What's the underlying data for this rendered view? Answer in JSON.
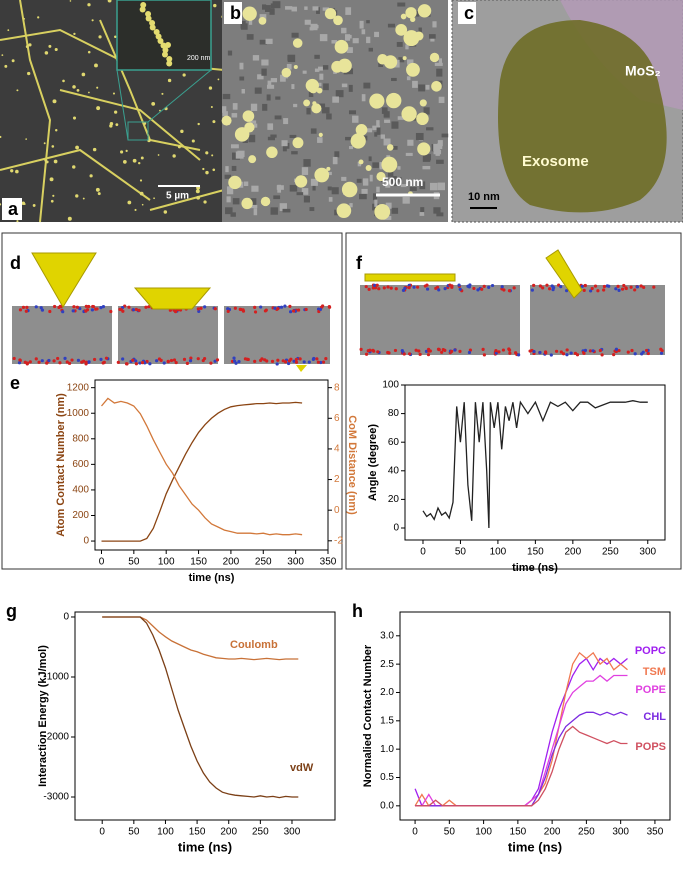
{
  "panels": {
    "a": {
      "label": "a",
      "scale_bar": "5 µm",
      "inset_scale_bar": "200 nm"
    },
    "b": {
      "label": "b",
      "scale_bar": "500 nm"
    },
    "c": {
      "label": "c",
      "scale_bar": "10 nm",
      "mos2": "MoS₂",
      "exosome": "Exosome"
    },
    "d": {
      "label": "d"
    },
    "e": {
      "label": "e"
    },
    "f": {
      "label": "f"
    },
    "g": {
      "label": "g"
    },
    "h": {
      "label": "h"
    }
  },
  "chart_data": [
    {
      "type": "line",
      "xlabel": "time (ns)",
      "ylabel": "Atom Contact Number (nm)",
      "y2label": "CoM Distance (nm)",
      "x": [
        0,
        10,
        20,
        30,
        40,
        50,
        60,
        70,
        80,
        90,
        100,
        110,
        120,
        130,
        140,
        150,
        160,
        170,
        180,
        190,
        200,
        210,
        220,
        230,
        240,
        250,
        260,
        270,
        280,
        290,
        300,
        310
      ],
      "series": [
        {
          "color": "#8b4513",
          "values": [
            0,
            0,
            0,
            0,
            0,
            0,
            0,
            20,
            100,
            230,
            370,
            480,
            580,
            680,
            770,
            850,
            910,
            960,
            1000,
            1030,
            1050,
            1060,
            1065,
            1070,
            1075,
            1075,
            1080,
            1075,
            1080,
            1080,
            1085,
            1080
          ]
        },
        {
          "color": "#d2783a",
          "axis": "y2",
          "values": [
            6.8,
            7.3,
            7.0,
            7.1,
            7.0,
            6.8,
            6.3,
            5.5,
            4.6,
            3.8,
            3.0,
            2.4,
            1.6,
            1.0,
            0.4,
            0.0,
            -0.5,
            -0.9,
            -1.1,
            -1.3,
            -1.4,
            -1.5,
            -1.5,
            -1.5,
            -1.55,
            -1.5,
            -1.6,
            -1.55,
            -1.6,
            -1.6,
            -1.55,
            -1.6
          ]
        }
      ],
      "xlim": [
        -10,
        350
      ],
      "xticks": [
        0,
        50,
        100,
        150,
        200,
        250,
        300,
        350
      ],
      "ylim": [
        -70,
        1260
      ],
      "yticks": [
        0,
        200,
        400,
        600,
        800,
        1000,
        1200
      ],
      "y2lim": [
        -2.6,
        8.5
      ],
      "y2ticks": [
        -2,
        0,
        2,
        4,
        6,
        8
      ]
    },
    {
      "type": "line",
      "xlabel": "time (ns)",
      "ylabel": "Angle (degree)",
      "x": [
        0,
        5,
        10,
        15,
        20,
        25,
        30,
        35,
        40,
        45,
        50,
        55,
        60,
        65,
        70,
        75,
        80,
        85,
        88,
        90,
        95,
        100,
        105,
        110,
        115,
        120,
        125,
        130,
        140,
        150,
        160,
        170,
        180,
        190,
        200,
        210,
        220,
        230,
        240,
        250,
        260,
        270,
        280,
        290,
        300
      ],
      "series": [
        {
          "color": "#222222",
          "values": [
            12,
            8,
            10,
            6,
            14,
            9,
            11,
            7,
            18,
            85,
            60,
            88,
            30,
            5,
            88,
            60,
            88,
            40,
            0,
            88,
            70,
            88,
            55,
            85,
            75,
            88,
            70,
            88,
            80,
            88,
            75,
            88,
            85,
            88,
            82,
            88,
            88,
            84,
            86,
            88,
            88,
            88,
            89,
            88,
            88
          ]
        }
      ],
      "xlim": [
        -24,
        323
      ],
      "xticks": [
        0,
        50,
        100,
        150,
        200,
        250,
        300
      ],
      "ylim": [
        -8.4,
        100
      ],
      "yticks": [
        0,
        20,
        40,
        60,
        80,
        100
      ]
    },
    {
      "type": "line",
      "xlabel": "time (ns)",
      "ylabel": "Interaction Energy (kJ/mol)",
      "x": [
        0,
        10,
        20,
        30,
        40,
        50,
        60,
        70,
        80,
        90,
        100,
        110,
        120,
        130,
        140,
        150,
        160,
        170,
        180,
        190,
        200,
        210,
        220,
        230,
        240,
        250,
        260,
        270,
        280,
        290,
        300,
        310
      ],
      "series": [
        {
          "name": "Coulomb",
          "color": "#c87137",
          "values": [
            0,
            0,
            0,
            0,
            0,
            0,
            0,
            -50,
            -150,
            -250,
            -330,
            -400,
            -450,
            -500,
            -550,
            -580,
            -620,
            -650,
            -680,
            -690,
            -700,
            -700,
            -690,
            -700,
            -710,
            -700,
            -690,
            -700,
            -710,
            -700,
            -700,
            -700
          ]
        },
        {
          "name": "vdW",
          "color": "#7b3f16",
          "values": [
            0,
            0,
            0,
            0,
            0,
            0,
            0,
            -100,
            -300,
            -550,
            -850,
            -1200,
            -1550,
            -1850,
            -2150,
            -2400,
            -2600,
            -2750,
            -2850,
            -2920,
            -2950,
            -2970,
            -2980,
            -2990,
            -3000,
            -2980,
            -3000,
            -2990,
            -3010,
            -2990,
            -3000,
            -3000
          ]
        }
      ],
      "xlim": [
        -43,
        368
      ],
      "xticks": [
        0,
        50,
        100,
        150,
        200,
        250,
        300
      ],
      "ylim": [
        -3383,
        83
      ],
      "yticks": [
        -3000,
        -2000,
        -1000,
        0
      ]
    },
    {
      "type": "line",
      "xlabel": "time (ns)",
      "ylabel": "Normalied Contact Number",
      "x": [
        0,
        10,
        20,
        30,
        40,
        50,
        60,
        70,
        80,
        90,
        100,
        110,
        120,
        130,
        140,
        150,
        160,
        170,
        180,
        190,
        200,
        210,
        220,
        230,
        240,
        250,
        260,
        270,
        280,
        290,
        300,
        310
      ],
      "series": [
        {
          "name": "POPC",
          "color": "#a020f0",
          "values": [
            0.3,
            0,
            0,
            0,
            0,
            0,
            0,
            0,
            0,
            0,
            0,
            0,
            0,
            0,
            0,
            0,
            0,
            0.1,
            0.3,
            0.8,
            1.3,
            1.7,
            2.0,
            2.3,
            2.5,
            2.6,
            2.4,
            2.6,
            2.5,
            2.6,
            2.5,
            2.6
          ]
        },
        {
          "name": "TSM",
          "color": "#f07850",
          "values": [
            0,
            0.2,
            0,
            0,
            0,
            0.1,
            0,
            0,
            0,
            0,
            0,
            0,
            0,
            0,
            0,
            0,
            0,
            0.1,
            0.2,
            0.4,
            0.8,
            1.4,
            2.0,
            2.5,
            2.7,
            2.6,
            2.7,
            2.5,
            2.6,
            2.4,
            2.5,
            2.4
          ]
        },
        {
          "name": "POPE",
          "color": "#e040e0",
          "values": [
            0,
            0,
            0.2,
            0,
            0,
            0,
            0,
            0,
            0,
            0,
            0,
            0,
            0,
            0,
            0,
            0,
            0,
            0.1,
            0.2,
            0.6,
            1.0,
            1.4,
            1.8,
            2.0,
            2.1,
            2.2,
            2.2,
            2.3,
            2.2,
            2.3,
            2.3,
            2.3
          ]
        },
        {
          "name": "CHL",
          "color": "#7b2be0",
          "values": [
            0,
            0,
            0,
            0,
            0,
            0,
            0,
            0,
            0,
            0,
            0,
            0,
            0,
            0,
            0,
            0,
            0,
            0,
            0.2,
            0.5,
            0.9,
            1.2,
            1.4,
            1.5,
            1.6,
            1.65,
            1.65,
            1.6,
            1.65,
            1.6,
            1.65,
            1.6
          ]
        },
        {
          "name": "POPS",
          "color": "#d05060",
          "values": [
            0,
            0,
            0,
            0.1,
            0,
            0,
            0,
            0,
            0,
            0,
            0,
            0,
            0,
            0,
            0,
            0,
            0,
            0,
            0.1,
            0.3,
            0.6,
            1.0,
            1.3,
            1.4,
            1.3,
            1.25,
            1.2,
            1.15,
            1.1,
            1.15,
            1.1,
            1.1
          ]
        }
      ],
      "xlim": [
        -22,
        372
      ],
      "xticks": [
        0,
        50,
        100,
        150,
        200,
        250,
        300,
        350
      ],
      "ylim": [
        -0.25,
        3.42
      ],
      "yticks": [
        {
          "value": 0,
          "label": "0.0"
        },
        0.5,
        {
          "value": 1,
          "label": "1.0"
        },
        1.5,
        {
          "value": 2,
          "label": "2.0"
        },
        2.5,
        {
          "value": 3,
          "label": "3.0"
        }
      ]
    }
  ]
}
